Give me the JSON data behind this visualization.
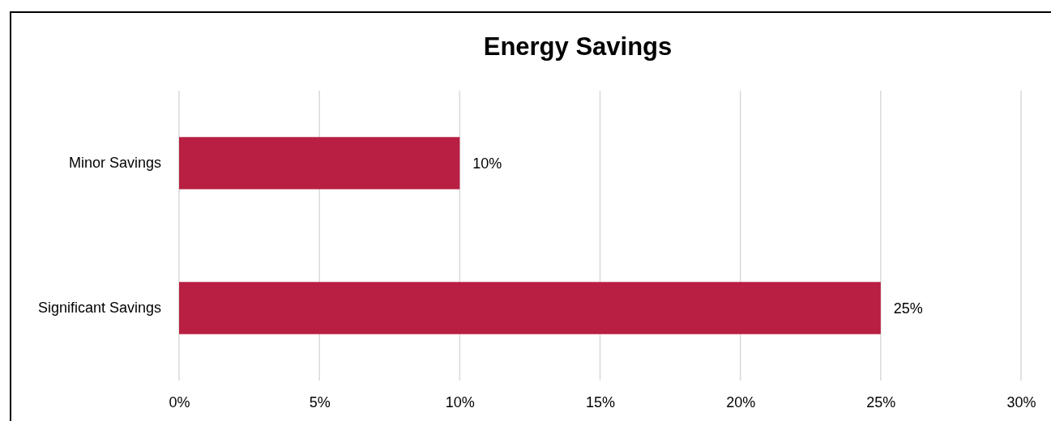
{
  "chart_data": {
    "type": "bar",
    "orientation": "horizontal",
    "title": "Energy Savings",
    "categories": [
      "Minor Savings",
      "Significant Savings"
    ],
    "values": [
      10,
      25
    ],
    "color": "#b81f42",
    "value_labels": [
      "10%",
      "25%"
    ],
    "xlim": [
      0,
      30
    ],
    "xticks": [
      {
        "value": 0,
        "label": "0%"
      },
      {
        "value": 5,
        "label": "5%"
      },
      {
        "value": 10,
        "label": "10%"
      },
      {
        "value": 15,
        "label": "15%"
      },
      {
        "value": 20,
        "label": "20%"
      },
      {
        "value": 25,
        "label": "25%"
      },
      {
        "value": 30,
        "label": "30%"
      }
    ],
    "grid": "x"
  }
}
